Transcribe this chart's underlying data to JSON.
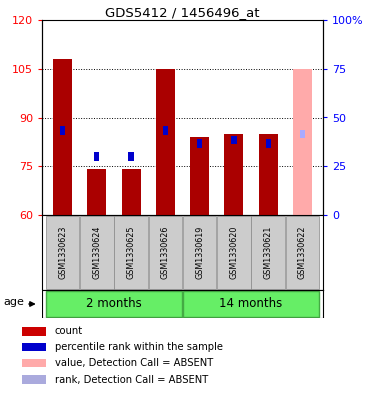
{
  "title": "GDS5412 / 1456496_at",
  "samples": [
    "GSM1330623",
    "GSM1330624",
    "GSM1330625",
    "GSM1330626",
    "GSM1330619",
    "GSM1330620",
    "GSM1330621",
    "GSM1330622"
  ],
  "count_values": [
    108,
    74,
    74,
    105,
    84,
    85,
    85,
    null
  ],
  "rank_values": [
    86,
    78,
    78,
    86,
    82,
    83,
    82,
    null
  ],
  "absent_count_value": 105,
  "absent_rank_value": 85,
  "absent_index": 7,
  "ylim_left": [
    60,
    120
  ],
  "ylim_right": [
    0,
    100
  ],
  "yticks_left": [
    60,
    75,
    90,
    105,
    120
  ],
  "yticks_right": [
    0,
    25,
    50,
    75,
    100
  ],
  "yticklabels_right": [
    "0",
    "25",
    "50",
    "75",
    "100%"
  ],
  "group1_label": "2 months",
  "group2_label": "14 months",
  "group1_indices": [
    0,
    1,
    2,
    3
  ],
  "group2_indices": [
    4,
    5,
    6,
    7
  ],
  "bar_width": 0.55,
  "bar_color_present": "#aa0000",
  "bar_color_absent": "#ffaaaa",
  "rank_color_present": "#0000cc",
  "rank_color_absent": "#aaaaff",
  "group_bg_color": "#66ee66",
  "group_border_color": "#44aa44",
  "sample_bg_color": "#cccccc",
  "legend_items": [
    {
      "color": "#cc0000",
      "label": "count"
    },
    {
      "color": "#0000cc",
      "label": "percentile rank within the sample"
    },
    {
      "color": "#ffaaaa",
      "label": "value, Detection Call = ABSENT"
    },
    {
      "color": "#aaaadd",
      "label": "rank, Detection Call = ABSENT"
    }
  ],
  "age_label": "age"
}
